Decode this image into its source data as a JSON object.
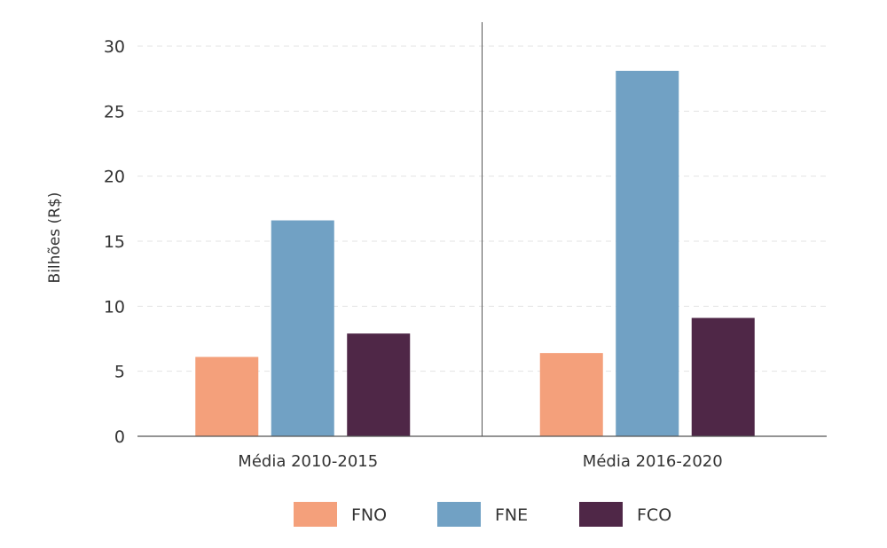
{
  "chart_data": {
    "type": "bar",
    "title": "",
    "xlabel": "",
    "ylabel": "Bilhões (R$)",
    "ylim": [
      0,
      30
    ],
    "yticks": [
      0,
      5,
      10,
      15,
      20,
      25,
      30
    ],
    "categories": [
      "Média 2010-2015",
      "Média 2016-2020"
    ],
    "series": [
      {
        "name": "FNO",
        "values": [
          6.1,
          6.4
        ],
        "color": "#f4a07b"
      },
      {
        "name": "FNE",
        "values": [
          16.6,
          28.1
        ],
        "color": "#71a1c4"
      },
      {
        "name": "FCO",
        "values": [
          7.9,
          9.1
        ],
        "color": "#4f2747"
      }
    ],
    "grid": "horizontal-dashed",
    "legend": "bottom-center"
  }
}
